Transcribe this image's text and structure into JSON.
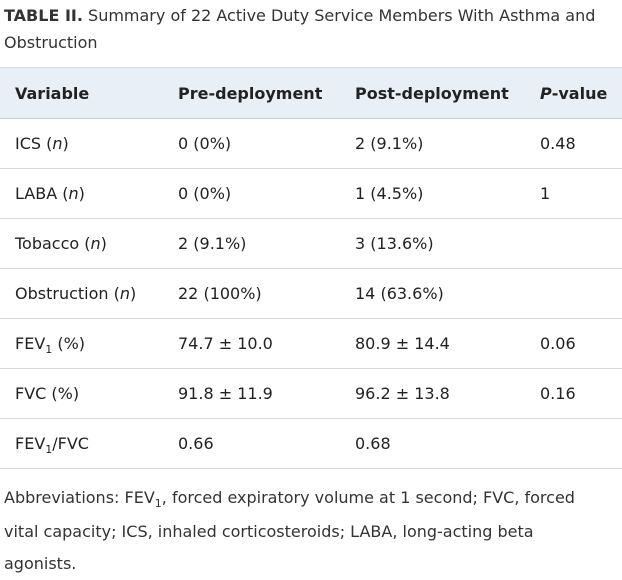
{
  "caption": {
    "label": "TABLE II.",
    "text": "Summary of 22 Active Duty Service Members With Asthma and Obstruction"
  },
  "headers": {
    "variable": "Variable",
    "pre": "Pre-deployment",
    "post": "Post-deployment",
    "pvalue_italic": "P",
    "pvalue_rest": "-value"
  },
  "rows": [
    {
      "name": "ICS",
      "italic": "n",
      "pre": "0 (0%)",
      "post": "2 (9.1%)",
      "p": "0.48"
    },
    {
      "name": "LABA",
      "italic": "n",
      "pre": "0 (0%)",
      "post": "1 (4.5%)",
      "p": "1"
    },
    {
      "name": "Tobacco",
      "italic": "n",
      "pre": "2 (9.1%)",
      "post": "3 (13.6%)",
      "p": ""
    },
    {
      "name": "Obstruction",
      "italic": "n",
      "pre": "22 (100%)",
      "post": "14 (63.6%)",
      "p": ""
    },
    {
      "name_pre": "FEV",
      "name_sub": "1",
      "name_post": " (%)",
      "pre": "74.7 ± 10.0",
      "post": "80.9 ± 14.4",
      "p": "0.06"
    },
    {
      "name": "FVC (%)",
      "pre": "91.8 ± 11.9",
      "post": "96.2 ± 13.8",
      "p": "0.16"
    },
    {
      "name_pre": "FEV",
      "name_sub": "1",
      "name_mid": "/FVC",
      "pre": "0.66",
      "post": "0.68",
      "p": ""
    }
  ],
  "footnote": {
    "pre": "Abbreviations: FEV",
    "sub": "1",
    "post": ", forced expiratory volume at 1 second; FVC, forced vital capacity; ICS, inhaled corticosteroids; LABA, long-acting beta agonists."
  }
}
